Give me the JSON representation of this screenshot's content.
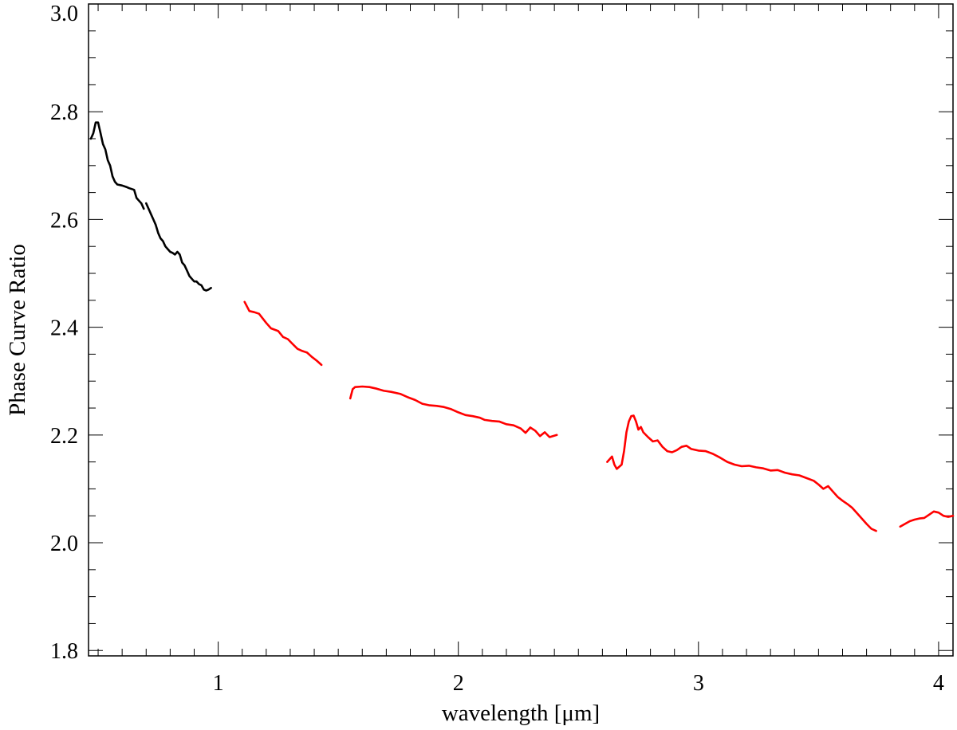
{
  "chart_data": {
    "type": "line",
    "title": "",
    "xlabel": "wavelength [μm]",
    "ylabel": "Phase Curve Ratio",
    "xlim": [
      0.46,
      4.06
    ],
    "ylim": [
      1.79,
      3.0
    ],
    "x_ticks": [
      1,
      2,
      3,
      4
    ],
    "x_tick_labels": [
      "1",
      "2",
      "3",
      "4"
    ],
    "y_ticks": [
      1.8,
      2.0,
      2.2,
      2.4,
      2.6,
      2.8,
      3.0
    ],
    "y_tick_labels": [
      "1.8",
      "2.0",
      "2.2",
      "2.4",
      "2.6",
      "2.8",
      "3.0"
    ],
    "grid": false,
    "legend": "none",
    "series": [
      {
        "color": "#000000",
        "segments": [
          [
            [
              0.47,
              2.75
            ],
            [
              0.48,
              2.76
            ],
            [
              0.49,
              2.78
            ],
            [
              0.5,
              2.78
            ],
            [
              0.51,
              2.76
            ],
            [
              0.52,
              2.74
            ],
            [
              0.53,
              2.73
            ],
            [
              0.54,
              2.71
            ],
            [
              0.55,
              2.7
            ],
            [
              0.56,
              2.68
            ],
            [
              0.57,
              2.67
            ],
            [
              0.58,
              2.665
            ],
            [
              0.6,
              2.663
            ],
            [
              0.62,
              2.66
            ],
            [
              0.63,
              2.658
            ],
            [
              0.65,
              2.655
            ],
            [
              0.66,
              2.64
            ],
            [
              0.67,
              2.635
            ],
            [
              0.68,
              2.63
            ],
            [
              0.69,
              2.62
            ]
          ],
          [
            [
              0.7,
              2.63
            ],
            [
              0.72,
              2.61
            ],
            [
              0.73,
              2.6
            ],
            [
              0.74,
              2.59
            ],
            [
              0.75,
              2.575
            ],
            [
              0.76,
              2.565
            ],
            [
              0.77,
              2.56
            ],
            [
              0.78,
              2.55
            ],
            [
              0.79,
              2.545
            ],
            [
              0.8,
              2.54
            ],
            [
              0.81,
              2.538
            ],
            [
              0.82,
              2.535
            ],
            [
              0.83,
              2.54
            ],
            [
              0.84,
              2.535
            ],
            [
              0.85,
              2.52
            ],
            [
              0.86,
              2.515
            ],
            [
              0.87,
              2.505
            ],
            [
              0.88,
              2.495
            ],
            [
              0.89,
              2.49
            ],
            [
              0.9,
              2.485
            ],
            [
              0.91,
              2.485
            ],
            [
              0.92,
              2.48
            ],
            [
              0.93,
              2.478
            ],
            [
              0.94,
              2.47
            ],
            [
              0.95,
              2.468
            ],
            [
              0.96,
              2.47
            ],
            [
              0.97,
              2.473
            ]
          ]
        ]
      },
      {
        "color": "#ff0000",
        "segments": [
          [
            [
              1.11,
              2.447
            ],
            [
              1.13,
              2.43
            ],
            [
              1.15,
              2.428
            ],
            [
              1.17,
              2.425
            ],
            [
              1.2,
              2.408
            ],
            [
              1.22,
              2.398
            ],
            [
              1.25,
              2.393
            ],
            [
              1.27,
              2.382
            ],
            [
              1.29,
              2.378
            ],
            [
              1.31,
              2.369
            ],
            [
              1.33,
              2.36
            ],
            [
              1.35,
              2.356
            ],
            [
              1.37,
              2.353
            ],
            [
              1.39,
              2.345
            ],
            [
              1.41,
              2.338
            ],
            [
              1.43,
              2.33
            ]
          ],
          [
            [
              1.55,
              2.268
            ],
            [
              1.56,
              2.285
            ],
            [
              1.57,
              2.289
            ],
            [
              1.6,
              2.29
            ],
            [
              1.63,
              2.289
            ],
            [
              1.66,
              2.286
            ],
            [
              1.69,
              2.282
            ],
            [
              1.72,
              2.28
            ],
            [
              1.76,
              2.276
            ],
            [
              1.79,
              2.27
            ],
            [
              1.82,
              2.265
            ],
            [
              1.85,
              2.258
            ],
            [
              1.88,
              2.255
            ],
            [
              1.91,
              2.254
            ],
            [
              1.94,
              2.252
            ],
            [
              1.97,
              2.248
            ],
            [
              2.0,
              2.242
            ],
            [
              2.03,
              2.237
            ],
            [
              2.06,
              2.235
            ],
            [
              2.09,
              2.232
            ],
            [
              2.11,
              2.228
            ],
            [
              2.14,
              2.226
            ],
            [
              2.17,
              2.225
            ],
            [
              2.2,
              2.22
            ],
            [
              2.23,
              2.218
            ],
            [
              2.26,
              2.212
            ],
            [
              2.28,
              2.204
            ],
            [
              2.3,
              2.214
            ],
            [
              2.32,
              2.208
            ],
            [
              2.34,
              2.198
            ],
            [
              2.36,
              2.205
            ],
            [
              2.38,
              2.196
            ],
            [
              2.41,
              2.2
            ]
          ],
          [
            [
              2.62,
              2.15
            ],
            [
              2.64,
              2.16
            ],
            [
              2.65,
              2.145
            ],
            [
              2.66,
              2.137
            ],
            [
              2.68,
              2.145
            ],
            [
              2.69,
              2.17
            ],
            [
              2.7,
              2.205
            ],
            [
              2.71,
              2.225
            ],
            [
              2.72,
              2.235
            ],
            [
              2.73,
              2.236
            ],
            [
              2.74,
              2.225
            ],
            [
              2.75,
              2.21
            ],
            [
              2.76,
              2.215
            ],
            [
              2.77,
              2.205
            ],
            [
              2.79,
              2.196
            ],
            [
              2.81,
              2.188
            ],
            [
              2.83,
              2.19
            ],
            [
              2.85,
              2.178
            ],
            [
              2.87,
              2.17
            ],
            [
              2.89,
              2.168
            ],
            [
              2.91,
              2.172
            ],
            [
              2.93,
              2.178
            ],
            [
              2.95,
              2.18
            ],
            [
              2.97,
              2.174
            ],
            [
              3.0,
              2.171
            ],
            [
              3.03,
              2.17
            ],
            [
              3.06,
              2.165
            ],
            [
              3.09,
              2.158
            ],
            [
              3.12,
              2.15
            ],
            [
              3.15,
              2.145
            ],
            [
              3.18,
              2.142
            ],
            [
              3.21,
              2.143
            ],
            [
              3.24,
              2.14
            ],
            [
              3.27,
              2.138
            ],
            [
              3.3,
              2.134
            ],
            [
              3.33,
              2.135
            ],
            [
              3.36,
              2.13
            ],
            [
              3.39,
              2.127
            ],
            [
              3.42,
              2.125
            ],
            [
              3.45,
              2.12
            ],
            [
              3.48,
              2.115
            ],
            [
              3.5,
              2.108
            ],
            [
              3.52,
              2.1
            ],
            [
              3.54,
              2.105
            ],
            [
              3.56,
              2.095
            ],
            [
              3.58,
              2.085
            ],
            [
              3.6,
              2.078
            ],
            [
              3.62,
              2.072
            ],
            [
              3.64,
              2.065
            ],
            [
              3.66,
              2.055
            ],
            [
              3.68,
              2.045
            ],
            [
              3.7,
              2.035
            ],
            [
              3.72,
              2.026
            ],
            [
              3.74,
              2.022
            ]
          ],
          [
            [
              3.84,
              2.03
            ],
            [
              3.86,
              2.035
            ],
            [
              3.88,
              2.04
            ],
            [
              3.9,
              2.043
            ],
            [
              3.92,
              2.045
            ],
            [
              3.94,
              2.046
            ],
            [
              3.96,
              2.052
            ],
            [
              3.98,
              2.058
            ],
            [
              4.0,
              2.056
            ],
            [
              4.02,
              2.05
            ],
            [
              4.04,
              2.048
            ],
            [
              4.06,
              2.05
            ]
          ]
        ]
      }
    ]
  }
}
